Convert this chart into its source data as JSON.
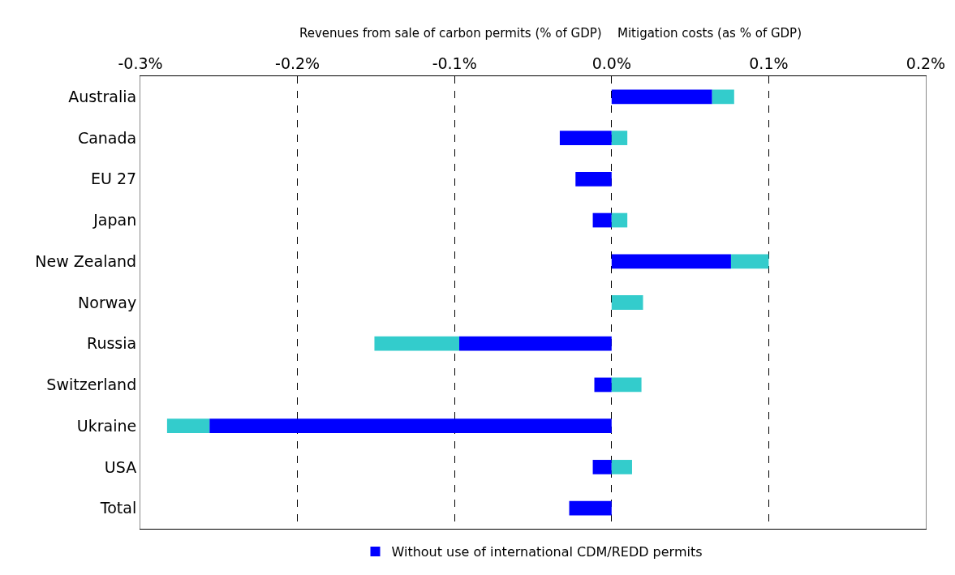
{
  "chart_data": {
    "type": "bar",
    "orientation": "horizontal",
    "stacked": true,
    "categories": [
      "Australia",
      "Canada",
      "EU 27",
      "Japan",
      "New Zealand",
      "Norway",
      "Russia",
      "Switzerland",
      "Ukraine",
      "USA",
      "Total"
    ],
    "series": [
      {
        "name": "Without use of international CDM/REDD permits",
        "color": "#0000ff",
        "values": [
          0.064,
          -0.033,
          -0.023,
          -0.012,
          0.076,
          0,
          -0.097,
          -0.011,
          -0.256,
          -0.012,
          -0.027
        ]
      },
      {
        "color": "#33cccc",
        "values": [
          0.014,
          0.01,
          null,
          0.01,
          0.024,
          0.02,
          -0.054,
          0.019,
          -0.027,
          0.013,
          null
        ]
      }
    ],
    "xlim": [
      -0.3,
      0.2
    ],
    "xticks": [
      {
        "value": -0.3,
        "label": "-0.3%"
      },
      {
        "value": -0.2,
        "label": "-0.2%"
      },
      {
        "value": -0.1,
        "label": "-0.1%"
      },
      {
        "value": 0,
        "label": "0.0%"
      },
      {
        "value": 0.1,
        "label": "0.1%"
      },
      {
        "value": 0.2,
        "label": "0.2%"
      }
    ],
    "annotations": [
      "Revenues from sale of carbon permits (% of GDP)",
      "Mitigation costs (as % of GDP)"
    ],
    "grid": "x",
    "line_style": "dashed",
    "legend": "bottom"
  }
}
